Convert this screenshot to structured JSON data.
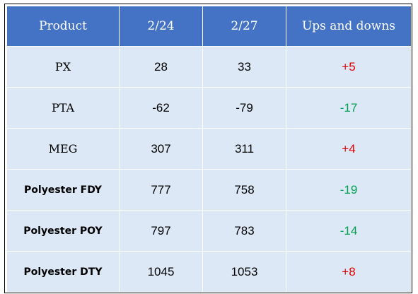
{
  "headers": [
    "Product",
    "2/24",
    "2/27",
    "Ups and downs"
  ],
  "rows": [
    {
      "product": "PX",
      "v1": "28",
      "v2": "33",
      "change": "+5",
      "direction": "up"
    },
    {
      "product": "PTA",
      "v1": "-62",
      "v2": "-79",
      "change": "-17",
      "direction": "down"
    },
    {
      "product": "MEG",
      "v1": "307",
      "v2": "311",
      "change": "+4",
      "direction": "up"
    },
    {
      "product": "Polyester FDY",
      "v1": "777",
      "v2": "758",
      "change": "-19",
      "direction": "down"
    },
    {
      "product": "Polyester POY",
      "v1": "797",
      "v2": "783",
      "change": "-14",
      "direction": "down"
    },
    {
      "product": "Polyester DTY",
      "v1": "1045",
      "v2": "1053",
      "change": "+8",
      "direction": "up"
    }
  ],
  "colors": {
    "header_bg": "#4472c4",
    "cell_bg": "#dde8f6",
    "up": "#e00000",
    "down": "#00a050"
  }
}
